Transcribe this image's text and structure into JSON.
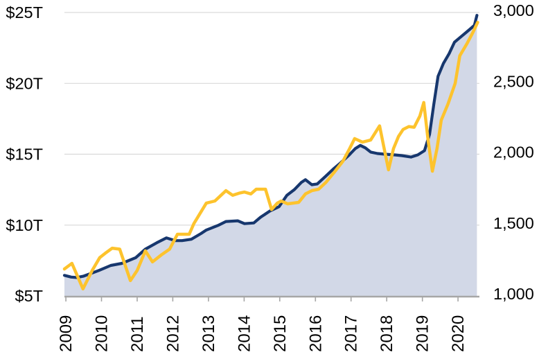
{
  "chart_data": {
    "type": "line",
    "title": "",
    "legend": "none",
    "grid": true,
    "x_axis": {
      "tick_labels": [
        "2009",
        "2010",
        "2011",
        "2012",
        "2013",
        "2014",
        "2015",
        "2016",
        "2017",
        "2018",
        "2019",
        "2020"
      ],
      "tick_years": [
        2009,
        2010,
        2011,
        2012,
        2013,
        2014,
        2015,
        2016,
        2017,
        2018,
        2019,
        2020
      ],
      "domain": [
        2008.96,
        2020.6
      ]
    },
    "y_left": {
      "labels": [
        "$25T",
        "$20T",
        "$15T",
        "$10T",
        "$5T"
      ],
      "values": [
        25,
        20,
        15,
        10,
        5
      ],
      "range": [
        5,
        25
      ],
      "unit": "USD trillions"
    },
    "y_right": {
      "labels": [
        "3,000",
        "2,500",
        "2,000",
        "1,500",
        "1,000"
      ],
      "values": [
        3000,
        2500,
        2000,
        1500,
        1000
      ],
      "range": [
        1000,
        3000
      ]
    },
    "series": [
      {
        "id": "navy-area",
        "axis": "left",
        "area": true,
        "color": "#17376e",
        "fill": "#d2d8e7",
        "points": [
          [
            2008.96,
            6.45
          ],
          [
            2009.15,
            6.33
          ],
          [
            2009.3,
            6.3
          ],
          [
            2009.5,
            6.4
          ],
          [
            2009.93,
            6.8
          ],
          [
            2010.26,
            7.15
          ],
          [
            2010.57,
            7.3
          ],
          [
            2010.96,
            7.7
          ],
          [
            2011.23,
            8.3
          ],
          [
            2011.55,
            8.75
          ],
          [
            2011.82,
            9.1
          ],
          [
            2012.07,
            8.9
          ],
          [
            2012.26,
            8.9
          ],
          [
            2012.52,
            9.0
          ],
          [
            2012.79,
            9.4
          ],
          [
            2012.94,
            9.65
          ],
          [
            2013.29,
            10.0
          ],
          [
            2013.49,
            10.25
          ],
          [
            2013.82,
            10.3
          ],
          [
            2014.01,
            10.1
          ],
          [
            2014.27,
            10.15
          ],
          [
            2014.46,
            10.55
          ],
          [
            2014.73,
            11.0
          ],
          [
            2014.98,
            11.3
          ],
          [
            2015.2,
            12.1
          ],
          [
            2015.41,
            12.5
          ],
          [
            2015.6,
            13.0
          ],
          [
            2015.72,
            13.2
          ],
          [
            2015.9,
            12.85
          ],
          [
            2016.05,
            12.9
          ],
          [
            2016.29,
            13.45
          ],
          [
            2016.5,
            13.95
          ],
          [
            2016.71,
            14.4
          ],
          [
            2016.93,
            14.9
          ],
          [
            2017.12,
            15.4
          ],
          [
            2017.26,
            15.62
          ],
          [
            2017.4,
            15.45
          ],
          [
            2017.55,
            15.15
          ],
          [
            2017.74,
            15.05
          ],
          [
            2017.96,
            15.0
          ],
          [
            2018.23,
            14.95
          ],
          [
            2018.42,
            14.9
          ],
          [
            2018.68,
            14.8
          ],
          [
            2018.87,
            14.95
          ],
          [
            2019.06,
            15.25
          ],
          [
            2019.2,
            16.4
          ],
          [
            2019.32,
            18.5
          ],
          [
            2019.44,
            20.5
          ],
          [
            2019.59,
            21.4
          ],
          [
            2019.75,
            22.1
          ],
          [
            2019.9,
            22.9
          ],
          [
            2020.04,
            23.2
          ],
          [
            2020.23,
            23.6
          ],
          [
            2020.37,
            23.9
          ],
          [
            2020.46,
            24.1
          ],
          [
            2020.53,
            24.8
          ]
        ]
      },
      {
        "id": "gold-line",
        "axis": "right",
        "area": false,
        "color": "#fdc32d",
        "points": [
          [
            2008.96,
            1190
          ],
          [
            2009.17,
            1230
          ],
          [
            2009.48,
            1050
          ],
          [
            2009.74,
            1180
          ],
          [
            2009.95,
            1270
          ],
          [
            2010.1,
            1300
          ],
          [
            2010.3,
            1337
          ],
          [
            2010.51,
            1330
          ],
          [
            2010.81,
            1108
          ],
          [
            2011.0,
            1180
          ],
          [
            2011.23,
            1318
          ],
          [
            2011.43,
            1240
          ],
          [
            2011.68,
            1290
          ],
          [
            2011.91,
            1330
          ],
          [
            2012.13,
            1435
          ],
          [
            2012.46,
            1435
          ],
          [
            2012.59,
            1510
          ],
          [
            2012.94,
            1655
          ],
          [
            2013.18,
            1670
          ],
          [
            2013.33,
            1705
          ],
          [
            2013.49,
            1743
          ],
          [
            2013.68,
            1710
          ],
          [
            2013.86,
            1725
          ],
          [
            2014.01,
            1733
          ],
          [
            2014.19,
            1720
          ],
          [
            2014.34,
            1753
          ],
          [
            2014.6,
            1753
          ],
          [
            2014.77,
            1610
          ],
          [
            2014.93,
            1655
          ],
          [
            2015.04,
            1670
          ],
          [
            2015.22,
            1650
          ],
          [
            2015.53,
            1660
          ],
          [
            2015.72,
            1720
          ],
          [
            2015.9,
            1743
          ],
          [
            2016.09,
            1753
          ],
          [
            2016.29,
            1800
          ],
          [
            2016.52,
            1870
          ],
          [
            2016.77,
            1950
          ],
          [
            2016.96,
            2040
          ],
          [
            2017.1,
            2110
          ],
          [
            2017.32,
            2085
          ],
          [
            2017.55,
            2100
          ],
          [
            2017.8,
            2200
          ],
          [
            2017.92,
            2050
          ],
          [
            2018.05,
            1890
          ],
          [
            2018.19,
            2040
          ],
          [
            2018.33,
            2125
          ],
          [
            2018.46,
            2175
          ],
          [
            2018.62,
            2195
          ],
          [
            2018.77,
            2190
          ],
          [
            2018.93,
            2270
          ],
          [
            2019.04,
            2365
          ],
          [
            2019.16,
            2100
          ],
          [
            2019.28,
            1880
          ],
          [
            2019.41,
            2040
          ],
          [
            2019.53,
            2240
          ],
          [
            2019.72,
            2355
          ],
          [
            2019.92,
            2500
          ],
          [
            2020.05,
            2695
          ],
          [
            2020.25,
            2780
          ],
          [
            2020.42,
            2860
          ],
          [
            2020.55,
            2930
          ]
        ]
      }
    ],
    "colors": {
      "navy_line": "#17376e",
      "area_fill": "#d2d8e7",
      "gold_line": "#fdc32d",
      "gridline": "#d9d9d9",
      "axis_line": "#a6a6a6",
      "text": "#000000",
      "background": "#ffffff"
    }
  }
}
